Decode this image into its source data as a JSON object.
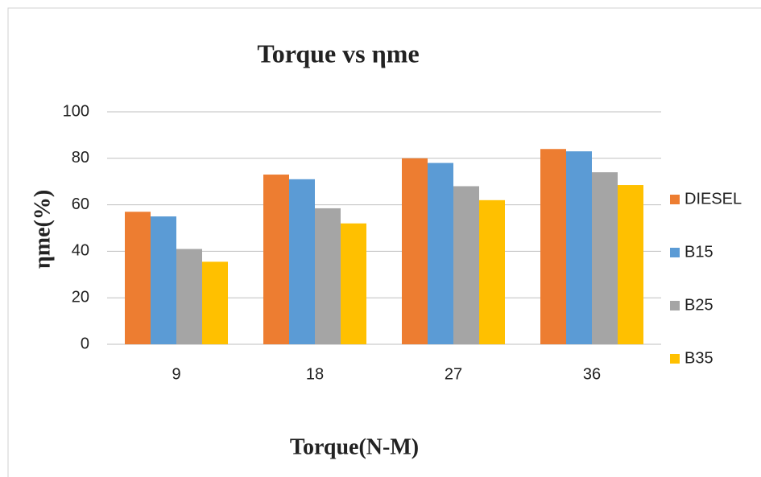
{
  "chart_data": {
    "type": "bar",
    "title": "Torque vs ηme",
    "x_label": "Torque(N-M)",
    "y_label": "ηme(%)",
    "categories": [
      "9",
      "18",
      "27",
      "36"
    ],
    "series": [
      {
        "name": "DIESEL",
        "color": "#ed7d31",
        "values": [
          57,
          73,
          80,
          84
        ]
      },
      {
        "name": "B15",
        "color": "#5b9bd5",
        "values": [
          55,
          71,
          78,
          83
        ]
      },
      {
        "name": "B25",
        "color": "#a5a5a5",
        "values": [
          41,
          58.5,
          68,
          74
        ]
      },
      {
        "name": "B35",
        "color": "#ffc000",
        "values": [
          35.5,
          52,
          62,
          68.5
        ]
      }
    ],
    "ylim": [
      0,
      100
    ],
    "yticks": [
      0,
      20,
      40,
      60,
      80,
      100
    ],
    "grid": true,
    "legend": "right"
  }
}
